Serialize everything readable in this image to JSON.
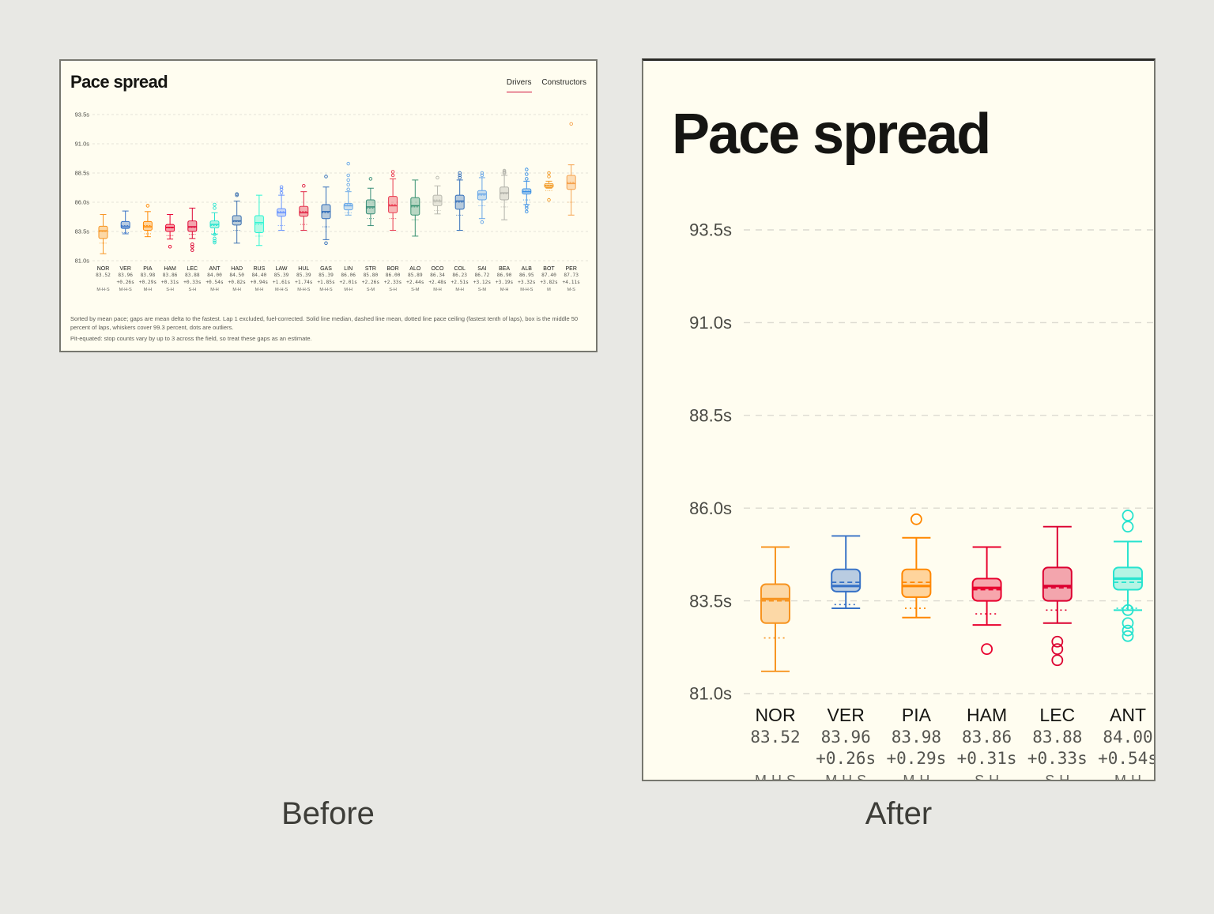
{
  "captions": {
    "before": "Before",
    "after": "After"
  },
  "before": {
    "title": "Pace spread",
    "tabs": [
      {
        "label": "Drivers",
        "active": true
      },
      {
        "label": "Constructors",
        "active": false
      }
    ],
    "footnotes": [
      "Sorted by mean pace; gaps are mean delta to the fastest. Lap 1 excluded, fuel-corrected. Solid line median, dashed line mean, dotted line pace ceiling (fastest tenth of laps), box is the middle 50 percent of laps, whiskers cover 99.3 percent, dots are outliers.",
      "Pit-equated: stop counts vary by up to 3 across the field, so treat these gaps as an estimate."
    ]
  },
  "after": {
    "title": "Pace spread"
  },
  "chart_data": {
    "type": "box",
    "title": "Pace spread",
    "ylim": [
      81.0,
      93.5
    ],
    "yticks": [
      "93.5s",
      "91.0s",
      "88.5s",
      "86.0s",
      "83.5s",
      "81.0s"
    ],
    "grid": true,
    "drivers": [
      {
        "code": "NOR",
        "mean": "83.52",
        "gap": "",
        "compounds": "M-H-S",
        "color": "#f7931e",
        "wlo": 81.6,
        "q1": 82.9,
        "med": 83.55,
        "mn": 83.5,
        "q3": 83.95,
        "whi": 84.95,
        "ceil": 82.5,
        "outliers": []
      },
      {
        "code": "VER",
        "mean": "83.96",
        "gap": "+0.26s",
        "compounds": "M-H-S",
        "color": "#3671c6",
        "wlo": 83.3,
        "q1": 83.75,
        "med": 83.9,
        "mn": 84.0,
        "q3": 84.35,
        "whi": 85.25,
        "ceil": 83.4,
        "outliers": []
      },
      {
        "code": "PIA",
        "mean": "83.98",
        "gap": "+0.29s",
        "compounds": "M-H",
        "color": "#ff8700",
        "wlo": 83.05,
        "q1": 83.6,
        "med": 83.9,
        "mn": 84.0,
        "q3": 84.35,
        "whi": 85.2,
        "ceil": 83.3,
        "outliers": [
          85.7
        ]
      },
      {
        "code": "HAM",
        "mean": "83.86",
        "gap": "+0.31s",
        "compounds": "S-H",
        "color": "#e8002d",
        "wlo": 82.85,
        "q1": 83.5,
        "med": 83.85,
        "mn": 83.8,
        "q3": 84.1,
        "whi": 84.95,
        "ceil": 83.15,
        "outliers": [
          82.2
        ]
      },
      {
        "code": "LEC",
        "mean": "83.88",
        "gap": "+0.33s",
        "compounds": "S-H",
        "color": "#dc0030",
        "wlo": 82.9,
        "q1": 83.5,
        "med": 83.9,
        "mn": 83.85,
        "q3": 84.4,
        "whi": 85.5,
        "ceil": 83.25,
        "outliers": [
          82.2,
          82.4,
          81.9
        ]
      },
      {
        "code": "ANT",
        "mean": "84.00",
        "gap": "+0.54s",
        "compounds": "M-H",
        "color": "#27e3cf",
        "wlo": 83.25,
        "q1": 83.8,
        "med": 84.1,
        "mn": 84.0,
        "q3": 84.4,
        "whi": 85.1,
        "ceil": 83.3,
        "outliers": [
          85.5,
          85.8,
          83.25,
          82.9,
          82.7,
          82.55
        ]
      },
      {
        "code": "HAD",
        "mean": "84.50",
        "gap": "+0.82s",
        "compounds": "M-H",
        "color": "#3a6fb0",
        "wlo": 82.5,
        "q1": 84.05,
        "med": 84.4,
        "mn": 84.35,
        "q3": 84.85,
        "whi": 86.1,
        "ceil": 83.6,
        "outliers": [
          86.6,
          86.7
        ]
      },
      {
        "code": "RUS",
        "mean": "84.40",
        "gap": "+0.94s",
        "compounds": "M-H",
        "color": "#27f4d2",
        "wlo": 82.3,
        "q1": 83.4,
        "med": 84.25,
        "mn": 84.1,
        "q3": 84.85,
        "whi": 86.6,
        "ceil": 83.1,
        "outliers": []
      },
      {
        "code": "LAW",
        "mean": "85.39",
        "gap": "+1.61s",
        "compounds": "M-H-S",
        "color": "#6692ff",
        "wlo": 83.6,
        "q1": 84.8,
        "med": 85.1,
        "mn": 85.2,
        "q3": 85.45,
        "whi": 86.6,
        "ceil": 84.0,
        "outliers": [
          86.8,
          87.1,
          87.3
        ]
      },
      {
        "code": "HUL",
        "mean": "85.39",
        "gap": "+1.74s",
        "compounds": "M-H-S",
        "color": "#e02040",
        "wlo": 83.6,
        "q1": 84.8,
        "med": 85.1,
        "mn": 85.2,
        "q3": 85.65,
        "whi": 86.9,
        "ceil": 84.1,
        "outliers": [
          87.4
        ]
      },
      {
        "code": "GAS",
        "mean": "85.39",
        "gap": "+1.85s",
        "compounds": "M-H-S",
        "color": "#2e6bb8",
        "wlo": 82.8,
        "q1": 84.6,
        "med": 85.2,
        "mn": 85.1,
        "q3": 85.8,
        "whi": 87.3,
        "ceil": 83.9,
        "outliers": [
          82.5,
          88.2
        ]
      },
      {
        "code": "LIN",
        "mean": "86.06",
        "gap": "+2.01s",
        "compounds": "M-H",
        "color": "#6caae8",
        "wlo": 84.9,
        "q1": 85.35,
        "med": 85.7,
        "mn": 85.8,
        "q3": 85.9,
        "whi": 86.9,
        "ceil": 85.1,
        "outliers": [
          87.1,
          87.5,
          87.9,
          88.3,
          89.3
        ]
      },
      {
        "code": "STR",
        "mean": "85.80",
        "gap": "+2.26s",
        "compounds": "S-M",
        "color": "#358c75",
        "wlo": 84.0,
        "q1": 85.0,
        "med": 85.6,
        "mn": 85.5,
        "q3": 86.2,
        "whi": 87.2,
        "ceil": 84.6,
        "outliers": [
          88.0
        ]
      },
      {
        "code": "BOR",
        "mean": "86.00",
        "gap": "+2.33s",
        "compounds": "S-H",
        "color": "#e8354a",
        "wlo": 83.6,
        "q1": 85.1,
        "med": 85.7,
        "mn": 85.8,
        "q3": 86.5,
        "whi": 88.0,
        "ceil": 84.6,
        "outliers": [
          88.3,
          88.6
        ]
      },
      {
        "code": "ALO",
        "mean": "85.89",
        "gap": "+2.44s",
        "compounds": "S-M",
        "color": "#35906f",
        "wlo": 83.1,
        "q1": 84.9,
        "med": 85.7,
        "mn": 85.6,
        "q3": 86.4,
        "whi": 87.9,
        "ceil": 84.5,
        "outliers": []
      },
      {
        "code": "OCO",
        "mean": "86.34",
        "gap": "+2.48s",
        "compounds": "M-H",
        "color": "#b8b8ae",
        "wlo": 85.0,
        "q1": 85.7,
        "med": 86.1,
        "mn": 86.2,
        "q3": 86.6,
        "whi": 87.4,
        "ceil": 85.3,
        "outliers": [
          88.1
        ]
      },
      {
        "code": "COL",
        "mean": "86.23",
        "gap": "+2.51s",
        "compounds": "M-H",
        "color": "#2e6bb8",
        "wlo": 83.6,
        "q1": 85.4,
        "med": 86.1,
        "mn": 86.0,
        "q3": 86.6,
        "whi": 87.9,
        "ceil": 84.9,
        "outliers": [
          88.1,
          88.3,
          88.5
        ]
      },
      {
        "code": "SAI",
        "mean": "86.72",
        "gap": "+3.12s",
        "compounds": "S-M",
        "color": "#64a4e8",
        "wlo": 84.6,
        "q1": 86.2,
        "med": 86.7,
        "mn": 86.6,
        "q3": 87.0,
        "whi": 88.1,
        "ceil": 85.7,
        "outliers": [
          84.3,
          88.3,
          88.5
        ]
      },
      {
        "code": "BEA",
        "mean": "86.90",
        "gap": "+3.19s",
        "compounds": "M-H",
        "color": "#b0b0a8",
        "wlo": 84.5,
        "q1": 86.2,
        "med": 86.8,
        "mn": 86.7,
        "q3": 87.3,
        "whi": 88.3,
        "ceil": 85.6,
        "outliers": [
          88.5,
          88.6,
          88.7
        ]
      },
      {
        "code": "ALB",
        "mean": "86.95",
        "gap": "+3.32s",
        "compounds": "M-H-S",
        "color": "#3a90e6",
        "wlo": 85.8,
        "q1": 86.7,
        "med": 86.9,
        "mn": 86.95,
        "q3": 87.15,
        "whi": 87.8,
        "ceil": 86.2,
        "outliers": [
          85.2,
          85.5,
          85.7,
          88.0,
          88.4,
          88.8
        ]
      },
      {
        "code": "BOT",
        "mean": "87.40",
        "gap": "+3.82s",
        "compounds": "M",
        "color": "#f29a26",
        "wlo": 87.2,
        "q1": 87.25,
        "med": 87.4,
        "mn": 87.45,
        "q3": 87.6,
        "whi": 87.8,
        "ceil": 87.0,
        "outliers": [
          86.2,
          88.2,
          88.5
        ]
      },
      {
        "code": "PER",
        "mean": "87.73",
        "gap": "+4.11s",
        "compounds": "M-S",
        "color": "#f5a04a",
        "wlo": 84.9,
        "q1": 87.1,
        "med": 87.6,
        "mn": 87.7,
        "q3": 88.3,
        "whi": 89.2,
        "ceil": 86.0,
        "outliers": [
          92.7
        ]
      }
    ]
  }
}
